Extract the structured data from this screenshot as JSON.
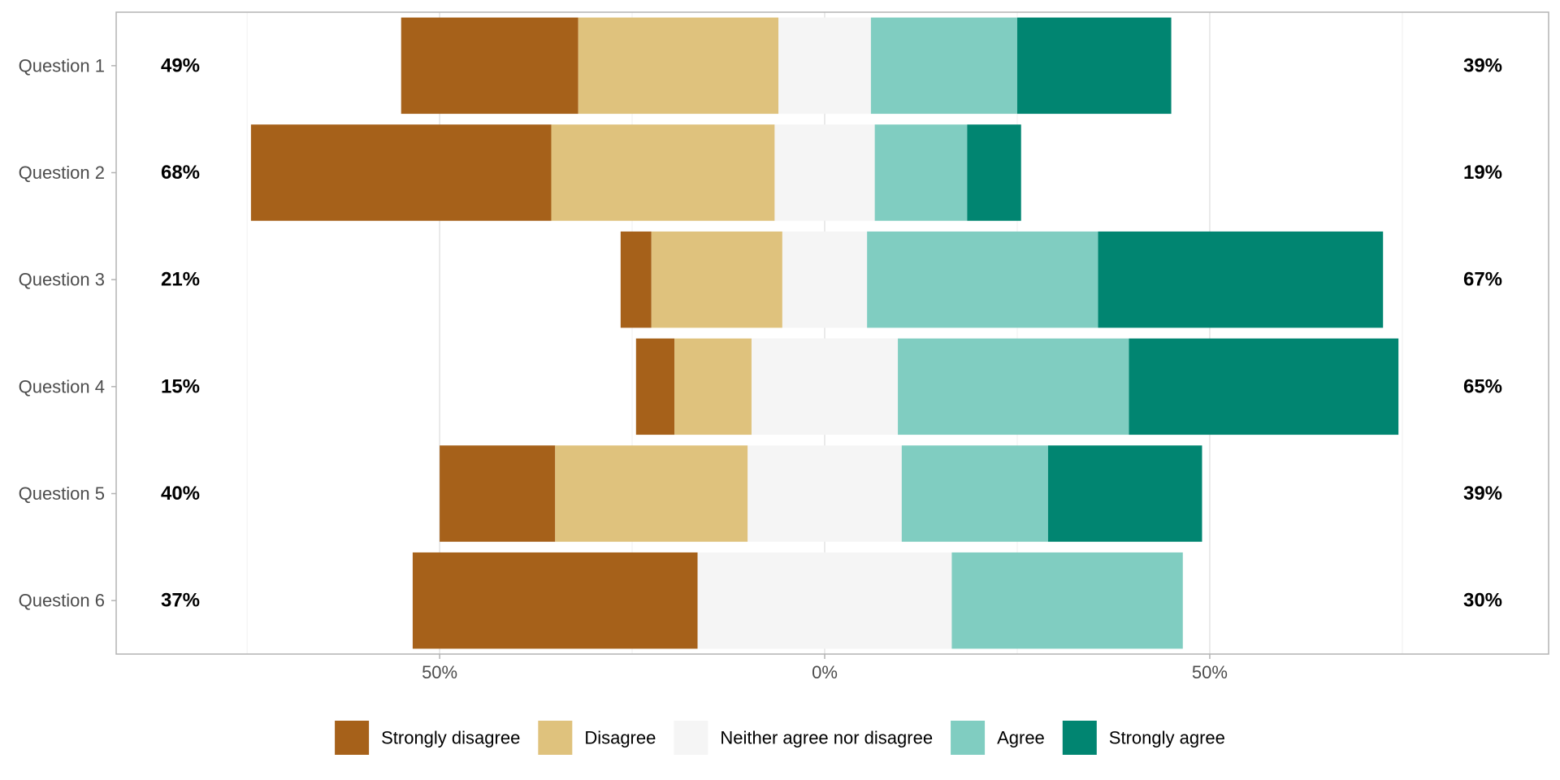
{
  "chart_data": {
    "type": "bar",
    "orientation": "horizontal",
    "stacking": "diverging",
    "x_ticks": [
      "50%",
      "0%",
      "50%"
    ],
    "x_tick_values": [
      -50,
      0,
      50
    ],
    "xlim": [
      -92,
      94
    ],
    "grid": true,
    "legend_position": "bottom",
    "categories": [
      "Question 1",
      "Question 2",
      "Question 3",
      "Question 4",
      "Question 5",
      "Question 6"
    ],
    "series": [
      {
        "name": "Strongly disagree",
        "color": "#a6611a",
        "values": [
          23,
          39,
          4,
          5,
          15,
          37
        ]
      },
      {
        "name": "Disagree",
        "color": "#dfc27d",
        "values": [
          26,
          29,
          17,
          10,
          25,
          0
        ]
      },
      {
        "name": "Neither agree nor disagree",
        "color": "#f5f5f5",
        "values": [
          12,
          13,
          11,
          19,
          20,
          33
        ]
      },
      {
        "name": "Agree",
        "color": "#80cdc1",
        "values": [
          19,
          12,
          30,
          30,
          19,
          30
        ]
      },
      {
        "name": "Strongly agree",
        "color": "#018571",
        "values": [
          20,
          7,
          37,
          35,
          20,
          0
        ]
      }
    ],
    "left_labels": [
      "49%",
      "68%",
      "21%",
      "15%",
      "40%",
      "37%"
    ],
    "right_labels": [
      "39%",
      "19%",
      "67%",
      "65%",
      "39%",
      "30%"
    ]
  }
}
